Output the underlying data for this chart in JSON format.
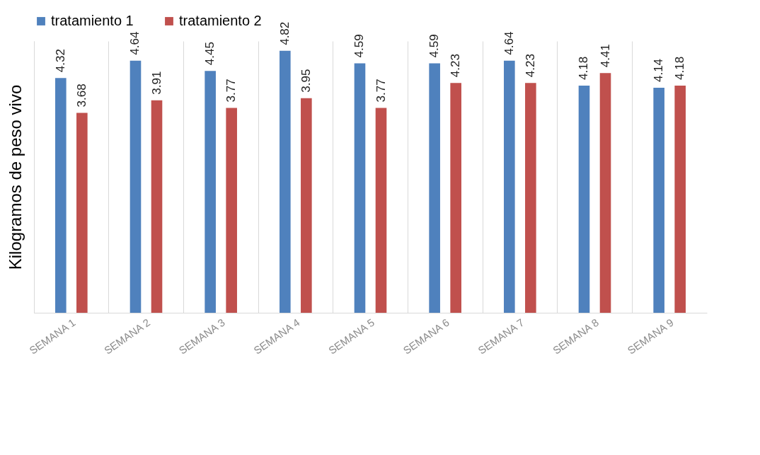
{
  "chart_data": {
    "type": "bar",
    "ylabel": "Kilogramos  de peso vivo",
    "categories": [
      "SEMANA 1",
      "SEMANA 2",
      "SEMANA 3",
      "SEMANA 4",
      "SEMANA 5",
      "SEMANA 6",
      "SEMANA 7",
      "SEMANA 8",
      "SEMANA 9"
    ],
    "series": [
      {
        "name": "tratamiento 1",
        "color": "#4f81bd",
        "values": [
          4.32,
          4.64,
          4.45,
          4.82,
          4.59,
          4.59,
          4.64,
          4.18,
          4.14
        ]
      },
      {
        "name": "tratamiento 2",
        "color": "#c0504d",
        "values": [
          3.68,
          3.91,
          3.77,
          3.95,
          3.77,
          4.23,
          4.23,
          4.41,
          4.18
        ]
      }
    ],
    "data_labels": true,
    "grid": "x",
    "legend": "top",
    "tick_labels": "x"
  }
}
